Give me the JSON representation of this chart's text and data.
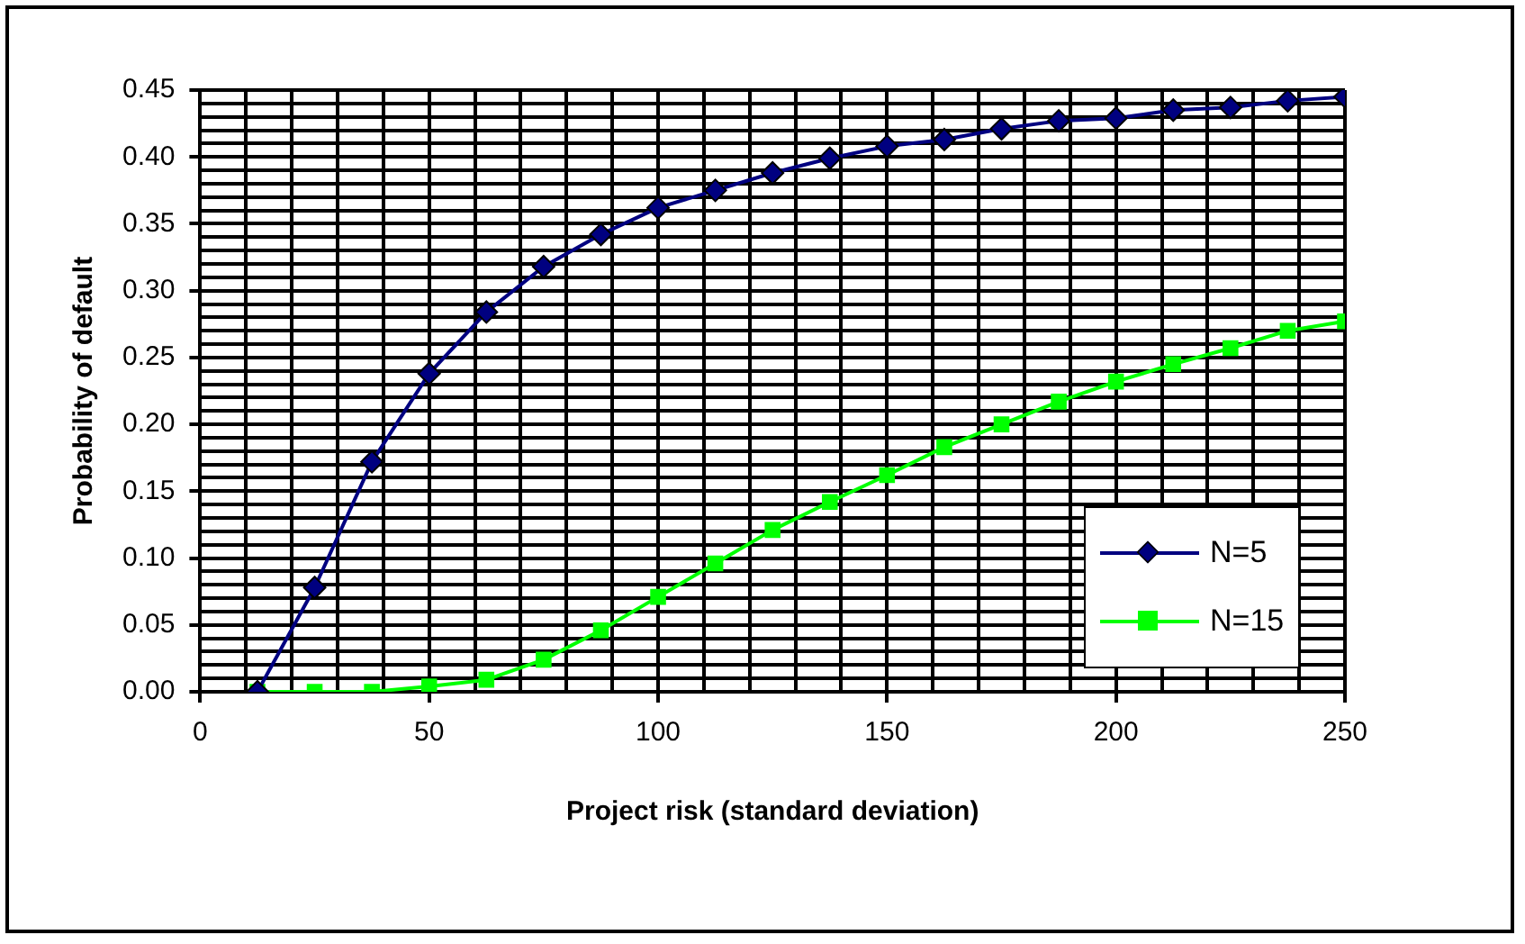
{
  "chart_data": {
    "type": "line",
    "xlabel": "Project risk (standard deviation)",
    "ylabel": "Probability of default",
    "x": [
      12.5,
      25,
      37.5,
      50,
      62.5,
      75,
      87.5,
      100,
      112.5,
      125,
      137.5,
      150,
      162.5,
      175,
      187.5,
      200,
      212.5,
      225,
      237.5,
      250
    ],
    "series": [
      {
        "name": "N=5",
        "color": "#000080",
        "marker": "diamond",
        "values": [
          0.0,
          0.078,
          0.172,
          0.238,
          0.284,
          0.318,
          0.342,
          0.362,
          0.375,
          0.388,
          0.399,
          0.408,
          0.413,
          0.421,
          0.427,
          0.429,
          0.435,
          0.437,
          0.442,
          0.445
        ]
      },
      {
        "name": "N=15",
        "color": "#00ff00",
        "marker": "square",
        "values": [
          0.0,
          0.0,
          0.0,
          0.004,
          0.009,
          0.024,
          0.046,
          0.071,
          0.096,
          0.121,
          0.142,
          0.162,
          0.183,
          0.2,
          0.217,
          0.232,
          0.245,
          0.257,
          0.27,
          0.277
        ]
      }
    ],
    "xlim": [
      0,
      250
    ],
    "xticks": [
      0,
      {
        "value": 10,
        "label": null
      },
      {
        "value": 20,
        "label": null
      },
      {
        "value": 30,
        "label": null
      },
      {
        "value": 40,
        "label": null
      },
      50,
      {
        "value": 60,
        "label": null
      },
      {
        "value": 70,
        "label": null
      },
      {
        "value": 80,
        "label": null
      },
      {
        "value": 90,
        "label": null
      },
      100,
      {
        "value": 110,
        "label": null
      },
      {
        "value": 120,
        "label": null
      },
      {
        "value": 130,
        "label": null
      },
      {
        "value": 140,
        "label": null
      },
      150,
      {
        "value": 160,
        "label": null
      },
      {
        "value": 170,
        "label": null
      },
      {
        "value": 180,
        "label": null
      },
      {
        "value": 190,
        "label": null
      },
      200,
      {
        "value": 210,
        "label": null
      },
      {
        "value": 220,
        "label": null
      },
      {
        "value": 230,
        "label": null
      },
      {
        "value": 240,
        "label": null
      },
      250
    ],
    "ylim": [
      0,
      0.45
    ],
    "yticks": [
      {
        "value": 0,
        "label": "0.00"
      },
      {
        "value": 0.01,
        "label": null
      },
      {
        "value": 0.02,
        "label": null
      },
      {
        "value": 0.03,
        "label": null
      },
      {
        "value": 0.04,
        "label": null
      },
      {
        "value": 0.05,
        "label": "0.05"
      },
      {
        "value": 0.06,
        "label": null
      },
      {
        "value": 0.07,
        "label": null
      },
      {
        "value": 0.08,
        "label": null
      },
      {
        "value": 0.09,
        "label": null
      },
      {
        "value": 0.1,
        "label": "0.10"
      },
      {
        "value": 0.11,
        "label": null
      },
      {
        "value": 0.12,
        "label": null
      },
      {
        "value": 0.13,
        "label": null
      },
      {
        "value": 0.14,
        "label": null
      },
      {
        "value": 0.15,
        "label": "0.15"
      },
      {
        "value": 0.16,
        "label": null
      },
      {
        "value": 0.17,
        "label": null
      },
      {
        "value": 0.18,
        "label": null
      },
      {
        "value": 0.19,
        "label": null
      },
      {
        "value": 0.2,
        "label": "0.20"
      },
      {
        "value": 0.21,
        "label": null
      },
      {
        "value": 0.22,
        "label": null
      },
      {
        "value": 0.23,
        "label": null
      },
      {
        "value": 0.24,
        "label": null
      },
      {
        "value": 0.25,
        "label": "0.25"
      },
      {
        "value": 0.26,
        "label": null
      },
      {
        "value": 0.27,
        "label": null
      },
      {
        "value": 0.28,
        "label": null
      },
      {
        "value": 0.29,
        "label": null
      },
      {
        "value": 0.3,
        "label": "0.30"
      },
      {
        "value": 0.31,
        "label": null
      },
      {
        "value": 0.32,
        "label": null
      },
      {
        "value": 0.33,
        "label": null
      },
      {
        "value": 0.34,
        "label": null
      },
      {
        "value": 0.35,
        "label": "0.35"
      },
      {
        "value": 0.36,
        "label": null
      },
      {
        "value": 0.37,
        "label": null
      },
      {
        "value": 0.38,
        "label": null
      },
      {
        "value": 0.39,
        "label": null
      },
      {
        "value": 0.4,
        "label": "0.40"
      },
      {
        "value": 0.41,
        "label": null
      },
      {
        "value": 0.42,
        "label": null
      },
      {
        "value": 0.43,
        "label": null
      },
      {
        "value": 0.44,
        "label": null
      },
      {
        "value": 0.45,
        "label": "0.45"
      }
    ],
    "grid": true,
    "legend": "bottom right",
    "line_style": "solid"
  }
}
